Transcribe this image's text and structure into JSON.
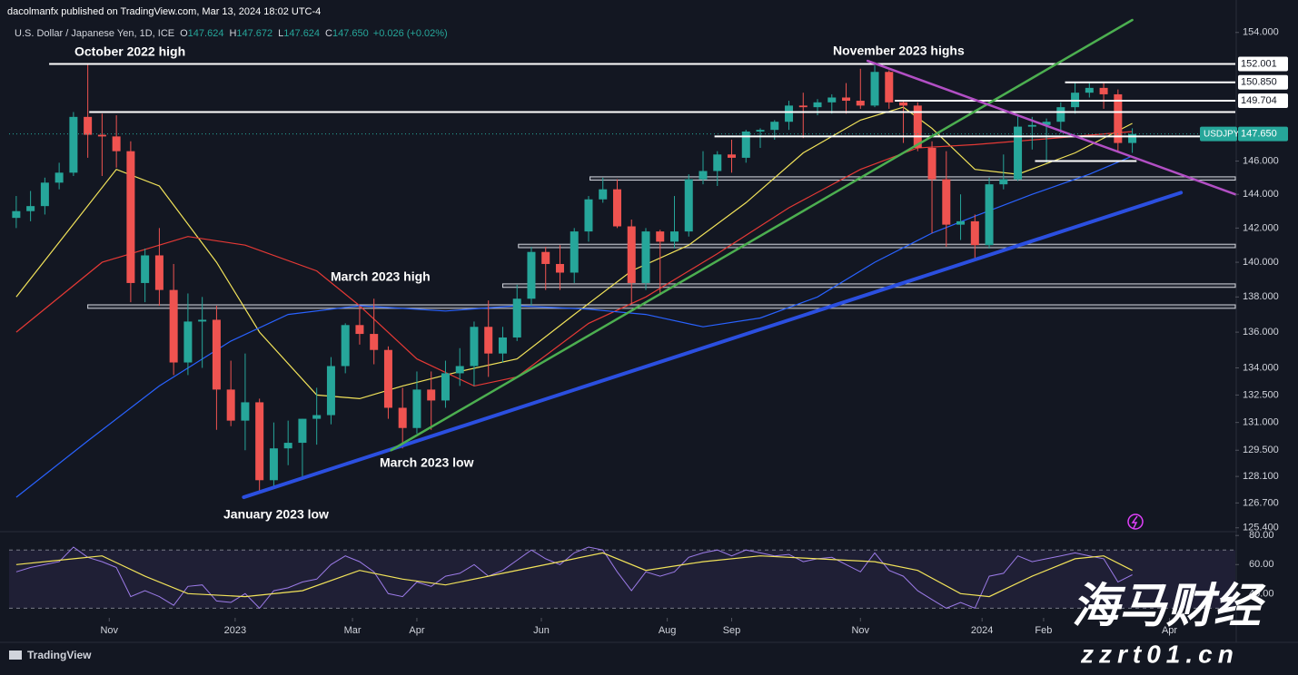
{
  "header": {
    "publisher": "dacolmanfx published on TradingView.com, Mar 13, 2024 18:02 UTC-4",
    "symbol": "U.S. Dollar / Japanese Yen, 1D, ICE",
    "quote": [
      {
        "key": "O",
        "text": "147.624"
      },
      {
        "key": "H",
        "text": "147.672"
      },
      {
        "key": "L",
        "text": "147.624"
      },
      {
        "key": "C",
        "text": "147.650"
      }
    ],
    "change": "+0.026 (+0.02%)"
  },
  "footer": {
    "logo": "TradingView"
  },
  "watermark": {
    "title": "海马财经",
    "site": "zzrt01.cn"
  },
  "chart_data": {
    "type": "candlestick",
    "log_scale": true,
    "grid": false,
    "up_color": "#26a69a",
    "down_color": "#ef5350",
    "annotations": [
      "October 2022 high",
      "November 2023 highs",
      "March 2023 high",
      "March 2023 low",
      "January 2023 low"
    ],
    "categories": [
      null,
      null,
      null,
      null,
      null,
      null,
      null,
      null,
      null,
      null,
      null,
      null,
      null,
      null,
      null,
      null,
      null,
      null,
      null,
      null,
      null,
      null,
      null,
      null,
      null,
      null,
      null,
      null,
      null,
      null,
      null,
      null,
      null,
      null,
      null,
      null,
      null,
      null,
      null,
      null,
      null,
      null,
      null,
      null,
      null,
      null,
      null,
      null,
      null,
      null,
      null,
      null,
      null,
      null,
      null,
      null,
      null,
      null,
      null,
      null,
      null,
      null,
      null,
      null,
      null,
      null,
      null,
      null,
      null,
      null,
      null,
      null,
      null,
      null,
      null,
      null,
      null,
      null,
      null
    ],
    "candles": {
      "open": [
        142.6,
        143.0,
        143.3,
        144.7,
        145.3,
        148.7,
        147.6,
        147.5,
        146.6,
        138.8,
        140.4,
        138.4,
        134.3,
        136.6,
        136.7,
        132.8,
        131.1,
        132.1,
        127.9,
        129.6,
        129.9,
        131.2,
        131.4,
        134.1,
        136.4,
        135.9,
        135.0,
        131.8,
        130.7,
        132.8,
        132.2,
        133.7,
        134.1,
        136.3,
        134.8,
        135.7,
        137.9,
        140.6,
        139.9,
        139.4,
        141.8,
        143.7,
        144.3,
        142.1,
        138.8,
        141.8,
        141.2,
        141.8,
        144.9,
        145.4,
        146.4,
        146.2,
        147.8,
        147.9,
        148.4,
        149.4,
        149.3,
        149.6,
        149.9,
        149.7,
        149.4,
        151.5,
        149.6,
        149.4,
        146.8,
        144.9,
        142.2,
        142.4,
        141.0,
        144.6,
        144.9,
        148.1,
        148.2,
        148.4,
        149.3,
        150.2,
        150.5,
        150.1,
        147.1
      ],
      "high": [
        143.9,
        144.2,
        145.0,
        145.9,
        149.0,
        151.94,
        148.9,
        148.8,
        147.2,
        140.8,
        142.0,
        139.9,
        138.2,
        138.0,
        137.5,
        134.4,
        134.8,
        132.3,
        131.0,
        131.1,
        131.2,
        132.9,
        134.6,
        136.5,
        137.5,
        137.9,
        135.2,
        132.9,
        133.8,
        133.8,
        134.4,
        135.1,
        136.6,
        137.8,
        136.3,
        138.7,
        140.9,
        140.9,
        141.0,
        142.0,
        143.9,
        145.0,
        144.9,
        142.5,
        142.0,
        141.9,
        143.9,
        145.2,
        146.6,
        146.6,
        147.3,
        147.9,
        148.0,
        148.5,
        149.7,
        150.2,
        149.8,
        150.1,
        150.8,
        151.7,
        151.9,
        151.6,
        149.7,
        149.6,
        147.2,
        146.6,
        144.0,
        142.8,
        145.0,
        146.4,
        148.8,
        148.7,
        148.6,
        149.6,
        150.88,
        150.8,
        150.8,
        150.4,
        148.0
      ],
      "low": [
        142.0,
        142.4,
        142.8,
        144.3,
        145.1,
        146.2,
        145.1,
        145.6,
        137.7,
        137.7,
        137.5,
        133.6,
        133.6,
        134.0,
        130.6,
        130.8,
        129.5,
        127.2,
        127.5,
        128.7,
        128.1,
        129.8,
        130.9,
        133.7,
        135.3,
        134.2,
        131.2,
        129.6,
        130.4,
        130.6,
        131.8,
        133.0,
        133.0,
        133.5,
        134.3,
        135.5,
        137.5,
        138.4,
        138.4,
        138.8,
        141.2,
        143.5,
        142.0,
        137.6,
        138.4,
        138.1,
        140.8,
        141.5,
        144.6,
        144.5,
        145.3,
        145.9,
        146.8,
        147.3,
        147.9,
        147.4,
        148.8,
        148.9,
        148.9,
        149.2,
        149.3,
        149.2,
        147.1,
        146.6,
        141.7,
        140.9,
        141.3,
        140.25,
        140.8,
        144.3,
        144.8,
        146.7,
        145.9,
        147.7,
        148.9,
        149.9,
        149.2,
        146.5,
        146.5
      ],
      "close": [
        143.0,
        143.3,
        144.7,
        145.3,
        148.7,
        147.6,
        147.5,
        146.6,
        138.8,
        140.4,
        138.4,
        134.3,
        136.6,
        136.7,
        132.8,
        131.1,
        132.1,
        127.9,
        129.6,
        129.9,
        131.2,
        131.4,
        134.1,
        136.4,
        135.9,
        135.0,
        131.8,
        130.7,
        132.8,
        132.2,
        133.7,
        134.1,
        136.3,
        134.8,
        135.7,
        137.9,
        140.6,
        139.9,
        139.4,
        141.8,
        143.7,
        144.3,
        142.1,
        138.8,
        141.8,
        141.2,
        141.8,
        144.9,
        145.4,
        146.4,
        146.2,
        147.8,
        147.9,
        148.4,
        149.4,
        149.3,
        149.6,
        149.9,
        149.7,
        149.4,
        151.5,
        149.6,
        149.4,
        146.8,
        144.9,
        142.2,
        142.4,
        141.0,
        144.6,
        144.9,
        148.1,
        148.2,
        148.4,
        149.3,
        150.2,
        150.5,
        150.1,
        147.1,
        147.65
      ]
    },
    "xlim": [
      -0.5,
      85.2
    ],
    "xticks": [
      {
        "value": 6.5,
        "label": "Nov"
      },
      {
        "value": 15.3,
        "label": "2023"
      },
      {
        "value": 23.5,
        "label": "Mar"
      },
      {
        "value": 28,
        "label": "Apr"
      },
      {
        "value": 36.7,
        "label": "Jun"
      },
      {
        "value": 45.5,
        "label": "Aug"
      },
      {
        "value": 50,
        "label": "Sep"
      },
      {
        "value": 59,
        "label": "Nov"
      },
      {
        "value": 67.5,
        "label": "2024"
      },
      {
        "value": 71.8,
        "label": "Feb"
      },
      {
        "value": 80.6,
        "label": "Apr"
      }
    ],
    "ylim": [
      125.2,
      154.8
    ],
    "yticks": [
      {
        "value": 154,
        "label": "154.000"
      },
      {
        "value": 146,
        "label": "146.000"
      },
      {
        "value": 144,
        "label": "144.000"
      },
      {
        "value": 142,
        "label": "142.000"
      },
      {
        "value": 140,
        "label": "140.000"
      },
      {
        "value": 138,
        "label": "138.000"
      },
      {
        "value": 136,
        "label": "136.000"
      },
      {
        "value": 134,
        "label": "134.000"
      },
      {
        "value": 132.5,
        "label": "132.500"
      },
      {
        "value": 131,
        "label": "131.000"
      },
      {
        "value": 129.5,
        "label": "129.500"
      },
      {
        "value": 128.1,
        "label": "128.100"
      },
      {
        "value": 126.7,
        "label": "126.700"
      },
      {
        "value": 125.4,
        "label": "125.400"
      }
    ],
    "moving_averages": [
      {
        "color": "#f2e35a",
        "x": [
          0,
          7,
          10,
          14,
          17,
          21,
          24,
          27,
          31,
          35,
          39,
          43,
          47,
          51,
          55,
          59,
          62,
          64,
          67,
          70,
          74,
          78
        ],
        "values": [
          138,
          145.5,
          144.5,
          140,
          136,
          132.5,
          132.3,
          133,
          133.8,
          134.5,
          137,
          139.5,
          141,
          143.5,
          146.5,
          148.5,
          149.3,
          148,
          145.5,
          145.2,
          146.5,
          148.3
        ]
      },
      {
        "color": "#e53935",
        "x": [
          0,
          6,
          12,
          16,
          21,
          24,
          28,
          32,
          35,
          40,
          44,
          49,
          54,
          59,
          63,
          67,
          74,
          78
        ],
        "values": [
          136,
          140,
          141.5,
          141,
          139.5,
          137.5,
          134.5,
          133,
          133.5,
          136.5,
          138,
          140.5,
          143.2,
          145.5,
          146.8,
          147,
          147.5,
          147.8
        ]
      },
      {
        "color": "#2962ff",
        "x": [
          0,
          5,
          10,
          15,
          19,
          24,
          30,
          35,
          40,
          44,
          48,
          52,
          56,
          60,
          64,
          67,
          71,
          75,
          78
        ],
        "values": [
          127,
          130,
          133,
          135.5,
          137,
          137.5,
          137.2,
          137.5,
          137.3,
          137,
          136.3,
          136.8,
          138,
          140,
          141.7,
          142.7,
          144,
          145.2,
          146.3
        ]
      }
    ],
    "trendlines": [
      {
        "color": "#2b4fe0",
        "width": 4,
        "from": [
          15.9,
          127.0
        ],
        "to": [
          81.4,
          144.1
        ]
      },
      {
        "color": "#4caf50",
        "width": 2.5,
        "from": [
          26.2,
          129.5
        ],
        "to": [
          78.0,
          154.8
        ]
      },
      {
        "color": "#b24fc4",
        "width": 2.5,
        "from": [
          59.5,
          152.2
        ],
        "to": [
          85.2,
          144.0
        ]
      }
    ],
    "levels": [
      {
        "value": 152.001,
        "label": "152.001",
        "from": 2.3
      },
      {
        "value": 150.85,
        "label": "150.850",
        "from": 73.3
      },
      {
        "value": 149.704,
        "label": "149.704",
        "from": 61.4
      },
      {
        "value": 149.0,
        "from": 5.1
      },
      {
        "value": 147.5,
        "from": 48.8
      },
      {
        "value": 146.0,
        "from": 71.2,
        "to": 78.3
      }
    ],
    "zones": [
      {
        "low": 144.85,
        "high": 145.05,
        "from": 40.1
      },
      {
        "low": 140.85,
        "high": 141.05,
        "from": 35.1
      },
      {
        "low": 138.55,
        "high": 138.75,
        "from": 34.0
      },
      {
        "low": 137.35,
        "high": 137.55,
        "from": 5.0
      }
    ],
    "last_price": {
      "symbol": "USDJPY",
      "value": 147.65,
      "label": "147.650",
      "color": "#26a69a"
    },
    "rsi": {
      "color": "#9c7be8",
      "ma_color": "#f2e35a",
      "ylim": [
        24,
        82
      ],
      "band": [
        30,
        70
      ],
      "yticks": [
        {
          "value": 80,
          "label": "80.00"
        },
        {
          "value": 60,
          "label": "60.00"
        },
        {
          "value": 40,
          "label": "40.00"
        }
      ],
      "values": [
        55,
        58,
        60,
        62,
        72,
        65,
        62,
        58,
        38,
        42,
        38,
        32,
        45,
        46,
        35,
        34,
        40,
        30,
        42,
        44,
        48,
        50,
        60,
        66,
        62,
        55,
        40,
        38,
        48,
        45,
        52,
        54,
        60,
        52,
        56,
        63,
        70,
        64,
        60,
        68,
        72,
        70,
        55,
        42,
        55,
        52,
        55,
        65,
        68,
        70,
        66,
        70,
        68,
        66,
        67,
        62,
        64,
        65,
        60,
        55,
        68,
        56,
        52,
        42,
        36,
        30,
        34,
        30,
        52,
        54,
        66,
        62,
        64,
        66,
        68,
        66,
        64,
        48,
        53
      ],
      "ma_x": [
        0,
        4,
        6,
        9,
        12,
        16,
        20,
        24,
        27,
        30,
        34,
        38,
        41,
        44,
        48,
        52,
        56,
        60,
        63,
        66,
        68,
        71,
        74,
        76,
        78
      ],
      "ma_values": [
        60,
        64,
        66,
        52,
        40,
        38,
        42,
        56,
        50,
        46,
        54,
        62,
        68,
        56,
        62,
        66,
        64,
        62,
        56,
        40,
        38,
        52,
        64,
        66,
        56
      ]
    }
  }
}
